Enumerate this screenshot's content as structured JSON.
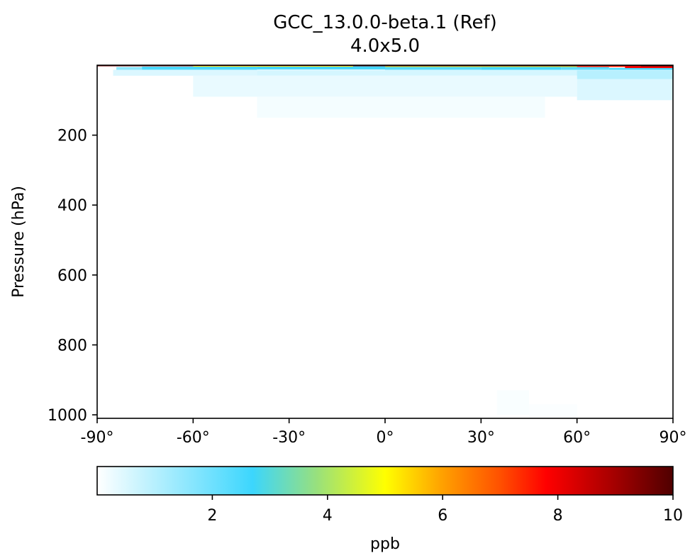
{
  "chart_data": {
    "type": "heatmap",
    "title": "GCC_13.0.0-beta.1 (Ref)",
    "subtitle": "4.0x5.0",
    "xlabel": "",
    "ylabel": "Pressure (hPa)",
    "xlim": [
      -90,
      90
    ],
    "ylim": [
      1010,
      0
    ],
    "y_inverted": true,
    "xticks": [
      -90,
      -60,
      -30,
      0,
      30,
      60,
      90
    ],
    "xticklabels": [
      "-90°",
      "-60°",
      "-30°",
      "0°",
      "30°",
      "60°",
      "90°"
    ],
    "yticks": [
      200,
      400,
      600,
      800,
      1000
    ],
    "yticklabels": [
      "200",
      "400",
      "600",
      "800",
      "1000"
    ],
    "grid": false,
    "colorbar": {
      "label": "ppb",
      "range": [
        0,
        10
      ],
      "ticks": [
        2,
        4,
        6,
        8,
        10
      ],
      "ticklabels": [
        "2",
        "4",
        "6",
        "8",
        "10"
      ],
      "colormap": [
        {
          "value": 0,
          "color": "#ffffff"
        },
        {
          "value": 2.7,
          "color": "#3cd6fd"
        },
        {
          "value": 3.8,
          "color": "#97e07e"
        },
        {
          "value": 5,
          "color": "#ffff00"
        },
        {
          "value": 6,
          "color": "#ffa000"
        },
        {
          "value": 7,
          "color": "#ff5000"
        },
        {
          "value": 7.8,
          "color": "#ff0000"
        },
        {
          "value": 9,
          "color": "#a30000"
        },
        {
          "value": 10,
          "color": "#4f0000"
        }
      ]
    },
    "cells": [
      {
        "lat": [
          -84,
          -76
        ],
        "p": [
          5,
          15
        ],
        "value": 1.6
      },
      {
        "lat": [
          -76,
          -40
        ],
        "p": [
          4,
          13
        ],
        "value": 2.5
      },
      {
        "lat": [
          -40,
          0
        ],
        "p": [
          3,
          12
        ],
        "value": 2.6
      },
      {
        "lat": [
          0,
          30
        ],
        "p": [
          3,
          13
        ],
        "value": 2.4
      },
      {
        "lat": [
          30,
          55
        ],
        "p": [
          3,
          14
        ],
        "value": 2.6
      },
      {
        "lat": [
          55,
          70
        ],
        "p": [
          3,
          15
        ],
        "value": 2.3
      },
      {
        "lat": [
          70,
          90
        ],
        "p": [
          8,
          14
        ],
        "value": 2.6
      },
      {
        "lat": [
          -90,
          90
        ],
        "p": [
          0,
          3
        ],
        "value": 9.5
      },
      {
        "lat": [
          -60,
          -10
        ],
        "p": [
          2,
          4
        ],
        "value": 5.5
      },
      {
        "lat": [
          0,
          60
        ],
        "p": [
          3,
          5
        ],
        "value": 4.5
      },
      {
        "lat": [
          60,
          75
        ],
        "p": [
          2,
          5
        ],
        "value": 7.5
      },
      {
        "lat": [
          75,
          90
        ],
        "p": [
          2,
          8
        ],
        "value": 8.0
      },
      {
        "lat": [
          80,
          90
        ],
        "p": [
          0,
          3
        ],
        "value": 10.0
      },
      {
        "lat": [
          -85,
          -40
        ],
        "p": [
          13,
          30
        ],
        "value": 0.5
      },
      {
        "lat": [
          -40,
          90
        ],
        "p": [
          13,
          30
        ],
        "value": 0.6
      },
      {
        "lat": [
          60,
          90
        ],
        "p": [
          15,
          40
        ],
        "value": 1.0
      },
      {
        "lat": [
          -60,
          60
        ],
        "p": [
          30,
          90
        ],
        "value": 0.3
      },
      {
        "lat": [
          60,
          90
        ],
        "p": [
          40,
          100
        ],
        "value": 0.5
      },
      {
        "lat": [
          -40,
          50
        ],
        "p": [
          90,
          150
        ],
        "value": 0.15
      },
      {
        "lat": [
          35,
          45
        ],
        "p": [
          930,
          1000
        ],
        "value": 0.08
      },
      {
        "lat": [
          45,
          60
        ],
        "p": [
          970,
          1010
        ],
        "value": 0.06
      }
    ]
  }
}
